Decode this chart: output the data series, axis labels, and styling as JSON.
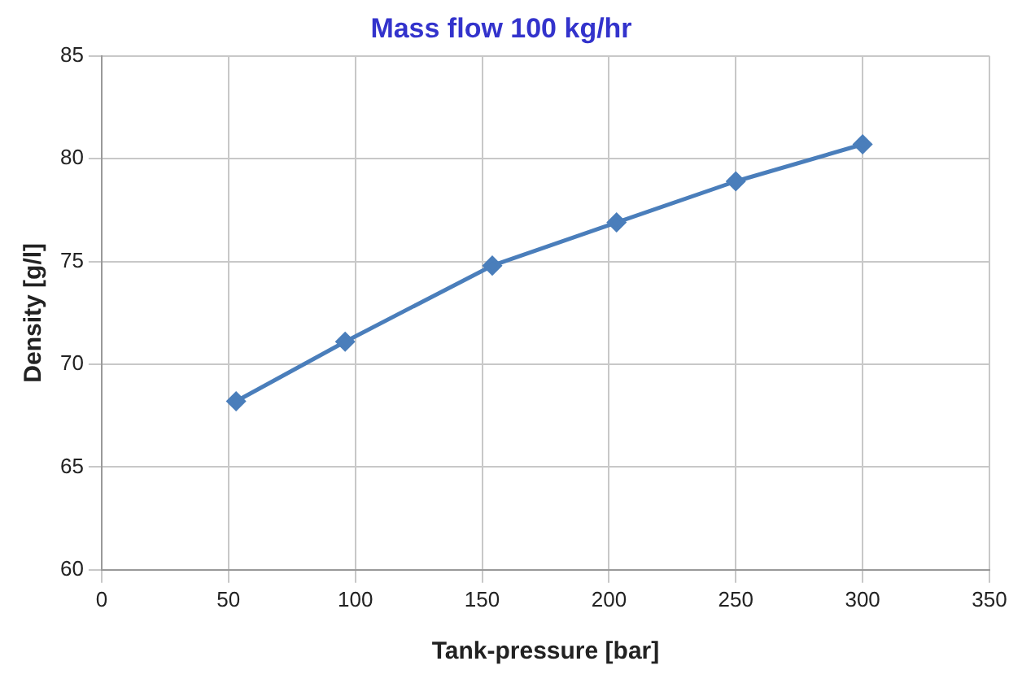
{
  "chart_data": {
    "type": "line",
    "title": "Mass flow 100 kg/hr",
    "xlabel": "Tank-pressure [bar]",
    "ylabel": "Density [g/l]",
    "x": [
      53,
      96,
      154,
      203,
      250,
      300
    ],
    "series": [
      {
        "color": "#4a7ebb",
        "values": [
          68.2,
          71.1,
          74.8,
          76.9,
          78.9,
          80.7
        ]
      }
    ],
    "xlim": [
      0,
      350
    ],
    "xticks": [
      0,
      50,
      100,
      150,
      200,
      250,
      300,
      350
    ],
    "ylim": [
      60,
      85
    ],
    "yticks": [
      60,
      65,
      70,
      75,
      80,
      85
    ],
    "grid": true,
    "legend": false,
    "marker": "diamond",
    "line_style": "solid"
  }
}
